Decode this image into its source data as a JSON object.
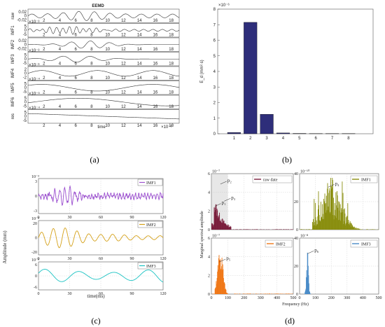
{
  "captions": {
    "a": "(a)",
    "b": "(b)",
    "c": "(c)",
    "d": "(d)"
  },
  "colors": {
    "bar": "#2e2e7a",
    "imf1_c": "#9b4fcf",
    "imf2_c": "#d4a017",
    "imf3_c": "#19c2c2",
    "raw_d": "#7a1f3d",
    "imf1_d": "#8a8f10",
    "imf2_d": "#f07818",
    "imf3_d": "#4a8cc8"
  },
  "panel_a": {
    "title": "EEMD",
    "xlabel": "time",
    "x_exponent": "×10⁻⁶",
    "xticks": [
      "2",
      "4",
      "6",
      "8",
      "10",
      "12",
      "14",
      "16",
      "18"
    ],
    "rows": [
      {
        "label": "raw",
        "exponent": "",
        "yticks": [
          "0.02",
          "0",
          "-0.02"
        ]
      },
      {
        "label": "IMF1",
        "exponent": "×10⁻³",
        "yticks": [
          "5",
          "0",
          "-5"
        ]
      },
      {
        "label": "IMF2",
        "exponent": "",
        "yticks": [
          "0.02",
          "0",
          "-0.02"
        ]
      },
      {
        "label": "IMF3",
        "exponent": "×10⁻³",
        "yticks": [
          "5",
          "0",
          "-5"
        ]
      },
      {
        "label": "IMF4",
        "exponent": "×10⁻³",
        "yticks": [
          "2",
          "0",
          "-2"
        ]
      },
      {
        "label": "IMF5",
        "exponent": "×10⁻⁴",
        "yticks": [
          "5",
          "0",
          "-5"
        ]
      },
      {
        "label": "IMF6",
        "exponent": "×10⁻⁵",
        "yticks": [
          "5",
          "0",
          "-5"
        ]
      },
      {
        "label": "res",
        "exponent": "×10⁻⁴",
        "yticks": [
          "5",
          "0",
          "-5"
        ]
      }
    ]
  },
  "panel_b": {
    "ylabel": "E_d (mm²·s)",
    "exponent": "×10⁻⁶",
    "yticks": [
      "0",
      "1",
      "2",
      "3",
      "4",
      "5",
      "6",
      "7",
      "8"
    ]
  },
  "panel_c": {
    "ylabel": "Amplitude (mm)",
    "xlabel": "time(ms)",
    "xticks": [
      "0",
      "30",
      "60",
      "90",
      "120"
    ],
    "rows": [
      {
        "legend": "IMF1",
        "exponent": "10⁻³",
        "yticks": [
          "3",
          "0",
          "-3"
        ]
      },
      {
        "legend": "IMF2",
        "exponent": "10⁻³",
        "yticks": [
          "20",
          "0",
          "-20"
        ]
      },
      {
        "legend": "IMF3",
        "exponent": "10⁻³",
        "yticks": [
          "6",
          "0",
          "-6"
        ]
      }
    ]
  },
  "panel_d": {
    "ylabel": "Marginal spectral amplitude",
    "xlabel": "Frequency (Hz)",
    "xticks": [
      "0",
      "100",
      "200",
      "300",
      "400",
      "500"
    ],
    "subplots": [
      {
        "legend": "raw date",
        "exponent": "10⁻⁷",
        "yticks": [
          "6",
          "4",
          "2",
          "0"
        ],
        "peaks": [
          "p₁",
          "p₂",
          "p₃"
        ]
      },
      {
        "legend": "IMF1",
        "exponent": "10⁻¹⁰",
        "yticks": [
          "40",
          "20",
          "0"
        ],
        "peaks": [
          "p₄"
        ]
      },
      {
        "legend": "IMF2",
        "exponent": "10⁻⁷",
        "yticks": [
          "6",
          "4",
          "2",
          "0"
        ],
        "peaks": [
          "p₅"
        ]
      },
      {
        "legend": "IMF3",
        "exponent": "10⁻⁸",
        "yticks": [
          "40",
          "20",
          "0"
        ],
        "peaks": [
          "p₆"
        ]
      }
    ]
  },
  "chart_data": [
    {
      "type": "line",
      "title": "EEMD",
      "xlabel": "time",
      "series": [
        {
          "name": "raw"
        },
        {
          "name": "IMF1"
        },
        {
          "name": "IMF2"
        },
        {
          "name": "IMF3"
        },
        {
          "name": "IMF4"
        },
        {
          "name": "IMF5"
        },
        {
          "name": "IMF6"
        },
        {
          "name": "res"
        }
      ]
    },
    {
      "type": "bar",
      "categories": [
        "1",
        "2",
        "3",
        "4",
        "5",
        "6",
        "7",
        "8"
      ],
      "values": [
        0.08,
        7.15,
        1.25,
        0.05,
        0.02,
        0.01,
        0.01,
        0.01
      ],
      "ylabel": "E_d (mm²·s)",
      "ylim": [
        0,
        8
      ]
    },
    {
      "type": "line",
      "xlabel": "time(ms)",
      "ylabel": "Amplitude (mm)",
      "xlim": [
        0,
        120
      ],
      "series": [
        {
          "name": "IMF1"
        },
        {
          "name": "IMF2"
        },
        {
          "name": "IMF3"
        }
      ]
    },
    {
      "type": "bar",
      "xlabel": "Frequency (Hz)",
      "ylabel": "Marginal spectral amplitude",
      "xlim": [
        0,
        500
      ],
      "series": [
        {
          "name": "raw date"
        },
        {
          "name": "IMF1"
        },
        {
          "name": "IMF2"
        },
        {
          "name": "IMF3"
        }
      ]
    }
  ]
}
